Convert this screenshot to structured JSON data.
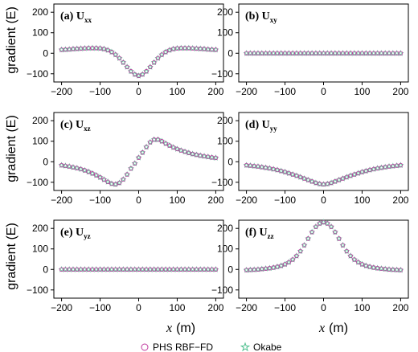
{
  "x_axis_label_var": "x",
  "x_axis_label_unit": "(m)",
  "y_axis_label": "gradient (E)",
  "legend": [
    {
      "label": "PHS RBF−FD",
      "marker": "circle",
      "color": "#c03aa0"
    },
    {
      "label": "Okabe",
      "marker": "star",
      "color": "#4fbf8f"
    }
  ],
  "chart_data": [
    {
      "type": "scatter",
      "panel_label": "(a)",
      "component": "U",
      "subscript": "xx",
      "xlim": [
        -220,
        220
      ],
      "ylim": [
        -140,
        240
      ],
      "xticks": [
        -200,
        -100,
        0,
        100,
        200
      ],
      "yticks": [
        -100,
        0,
        100,
        200
      ],
      "grid": false,
      "x": [
        -200,
        -190,
        -180,
        -170,
        -160,
        -150,
        -140,
        -130,
        -120,
        -110,
        -100,
        -90,
        -80,
        -70,
        -60,
        -50,
        -40,
        -30,
        -20,
        -10,
        0,
        10,
        20,
        30,
        40,
        50,
        60,
        70,
        80,
        90,
        100,
        110,
        120,
        130,
        140,
        150,
        160,
        170,
        180,
        190,
        200
      ],
      "series": [
        {
          "name": "PHS RBF−FD",
          "values": [
            17,
            18,
            19,
            21,
            22,
            23,
            24,
            25,
            25,
            25,
            24,
            21,
            15,
            6,
            -7,
            -24,
            -45,
            -67,
            -88,
            -103,
            -110,
            -103,
            -88,
            -67,
            -45,
            -24,
            -7,
            6,
            15,
            21,
            24,
            25,
            25,
            25,
            24,
            23,
            22,
            21,
            19,
            18,
            17
          ]
        },
        {
          "name": "Okabe",
          "values": [
            17,
            18,
            19,
            21,
            22,
            23,
            24,
            25,
            25,
            25,
            24,
            21,
            15,
            6,
            -7,
            -24,
            -45,
            -67,
            -88,
            -103,
            -110,
            -103,
            -88,
            -67,
            -45,
            -24,
            -7,
            6,
            15,
            21,
            24,
            25,
            25,
            25,
            24,
            23,
            22,
            21,
            19,
            18,
            17
          ]
        }
      ]
    },
    {
      "type": "scatter",
      "panel_label": "(b)",
      "component": "U",
      "subscript": "xy",
      "xlim": [
        -220,
        220
      ],
      "ylim": [
        -140,
        240
      ],
      "xticks": [
        -200,
        -100,
        0,
        100,
        200
      ],
      "yticks": [
        -100,
        0,
        100,
        200
      ],
      "grid": false,
      "x": [
        -200,
        -190,
        -180,
        -170,
        -160,
        -150,
        -140,
        -130,
        -120,
        -110,
        -100,
        -90,
        -80,
        -70,
        -60,
        -50,
        -40,
        -30,
        -20,
        -10,
        0,
        10,
        20,
        30,
        40,
        50,
        60,
        70,
        80,
        90,
        100,
        110,
        120,
        130,
        140,
        150,
        160,
        170,
        180,
        190,
        200
      ],
      "series": [
        {
          "name": "PHS RBF−FD",
          "values": [
            0,
            0,
            0,
            0,
            0,
            0,
            0,
            0,
            0,
            0,
            0,
            0,
            0,
            0,
            0,
            0,
            0,
            0,
            0,
            0,
            0,
            0,
            0,
            0,
            0,
            0,
            0,
            0,
            0,
            0,
            0,
            0,
            0,
            0,
            0,
            0,
            0,
            0,
            0,
            0,
            0
          ]
        },
        {
          "name": "Okabe",
          "values": [
            0,
            0,
            0,
            0,
            0,
            0,
            0,
            0,
            0,
            0,
            0,
            0,
            0,
            0,
            0,
            0,
            0,
            0,
            0,
            0,
            0,
            0,
            0,
            0,
            0,
            0,
            0,
            0,
            0,
            0,
            0,
            0,
            0,
            0,
            0,
            0,
            0,
            0,
            0,
            0,
            0
          ]
        }
      ]
    },
    {
      "type": "scatter",
      "panel_label": "(c)",
      "component": "U",
      "subscript": "xz",
      "xlim": [
        -220,
        220
      ],
      "ylim": [
        -140,
        240
      ],
      "xticks": [
        -200,
        -100,
        0,
        100,
        200
      ],
      "yticks": [
        -100,
        0,
        100,
        200
      ],
      "grid": false,
      "x": [
        -200,
        -190,
        -180,
        -170,
        -160,
        -150,
        -140,
        -130,
        -120,
        -110,
        -100,
        -90,
        -80,
        -70,
        -60,
        -50,
        -40,
        -30,
        -20,
        -10,
        0,
        10,
        20,
        30,
        40,
        50,
        60,
        70,
        80,
        90,
        100,
        110,
        120,
        130,
        140,
        150,
        160,
        170,
        180,
        190,
        200
      ],
      "series": [
        {
          "name": "PHS RBF−FD",
          "values": [
            -17,
            -20,
            -23,
            -27,
            -31,
            -36,
            -42,
            -49,
            -57,
            -66,
            -76,
            -87,
            -98,
            -107,
            -110,
            -103,
            -86,
            -62,
            -33,
            -8,
            20,
            45,
            72,
            95,
            108,
            108,
            100,
            89,
            79,
            70,
            62,
            55,
            49,
            43,
            38,
            34,
            30,
            27,
            24,
            21,
            19
          ]
        },
        {
          "name": "Okabe",
          "values": [
            -17,
            -20,
            -23,
            -27,
            -31,
            -36,
            -42,
            -49,
            -57,
            -66,
            -76,
            -87,
            -98,
            -107,
            -110,
            -103,
            -86,
            -62,
            -33,
            -8,
            20,
            45,
            72,
            95,
            108,
            108,
            100,
            89,
            79,
            70,
            62,
            55,
            49,
            43,
            38,
            34,
            30,
            27,
            24,
            21,
            19
          ]
        }
      ]
    },
    {
      "type": "scatter",
      "panel_label": "(d)",
      "component": "U",
      "subscript": "yy",
      "xlim": [
        -220,
        220
      ],
      "ylim": [
        -140,
        240
      ],
      "xticks": [
        -200,
        -100,
        0,
        100,
        200
      ],
      "yticks": [
        -100,
        0,
        100,
        200
      ],
      "grid": false,
      "x": [
        -200,
        -190,
        -180,
        -170,
        -160,
        -150,
        -140,
        -130,
        -120,
        -110,
        -100,
        -90,
        -80,
        -70,
        -60,
        -50,
        -40,
        -30,
        -20,
        -10,
        0,
        10,
        20,
        30,
        40,
        50,
        60,
        70,
        80,
        90,
        100,
        110,
        120,
        130,
        140,
        150,
        160,
        170,
        180,
        190,
        200
      ],
      "series": [
        {
          "name": "PHS RBF−FD",
          "values": [
            -17,
            -19,
            -21,
            -23,
            -26,
            -29,
            -32,
            -36,
            -40,
            -45,
            -50,
            -56,
            -62,
            -68,
            -75,
            -82,
            -89,
            -96,
            -103,
            -108,
            -110,
            -108,
            -103,
            -96,
            -89,
            -82,
            -75,
            -68,
            -62,
            -56,
            -50,
            -45,
            -40,
            -36,
            -32,
            -29,
            -26,
            -23,
            -21,
            -19,
            -17
          ]
        },
        {
          "name": "Okabe",
          "values": [
            -17,
            -19,
            -21,
            -23,
            -26,
            -29,
            -32,
            -36,
            -40,
            -45,
            -50,
            -56,
            -62,
            -68,
            -75,
            -82,
            -89,
            -96,
            -103,
            -108,
            -110,
            -108,
            -103,
            -96,
            -89,
            -82,
            -75,
            -68,
            -62,
            -56,
            -50,
            -45,
            -40,
            -36,
            -32,
            -29,
            -26,
            -23,
            -21,
            -19,
            -17
          ]
        }
      ]
    },
    {
      "type": "scatter",
      "panel_label": "(e)",
      "component": "U",
      "subscript": "yz",
      "xlim": [
        -220,
        220
      ],
      "ylim": [
        -140,
        240
      ],
      "xticks": [
        -200,
        -100,
        0,
        100,
        200
      ],
      "yticks": [
        -100,
        0,
        100,
        200
      ],
      "grid": false,
      "x": [
        -200,
        -190,
        -180,
        -170,
        -160,
        -150,
        -140,
        -130,
        -120,
        -110,
        -100,
        -90,
        -80,
        -70,
        -60,
        -50,
        -40,
        -30,
        -20,
        -10,
        0,
        10,
        20,
        30,
        40,
        50,
        60,
        70,
        80,
        90,
        100,
        110,
        120,
        130,
        140,
        150,
        160,
        170,
        180,
        190,
        200
      ],
      "series": [
        {
          "name": "PHS RBF−FD",
          "values": [
            0,
            0,
            0,
            0,
            0,
            0,
            0,
            0,
            0,
            0,
            0,
            0,
            0,
            0,
            0,
            0,
            0,
            0,
            0,
            0,
            0,
            0,
            0,
            0,
            0,
            0,
            0,
            0,
            0,
            0,
            0,
            0,
            0,
            0,
            0,
            0,
            0,
            0,
            0,
            0,
            0
          ]
        },
        {
          "name": "Okabe",
          "values": [
            0,
            0,
            0,
            0,
            0,
            0,
            0,
            0,
            0,
            0,
            0,
            0,
            0,
            0,
            0,
            0,
            0,
            0,
            0,
            0,
            0,
            0,
            0,
            0,
            0,
            0,
            0,
            0,
            0,
            0,
            0,
            0,
            0,
            0,
            0,
            0,
            0,
            0,
            0,
            0,
            0
          ]
        }
      ]
    },
    {
      "type": "scatter",
      "panel_label": "(f)",
      "component": "U",
      "subscript": "zz",
      "xlim": [
        -220,
        220
      ],
      "ylim": [
        -140,
        240
      ],
      "xticks": [
        -200,
        -100,
        0,
        100,
        200
      ],
      "yticks": [
        -100,
        0,
        100,
        200
      ],
      "grid": false,
      "x": [
        -200,
        -190,
        -180,
        -170,
        -160,
        -150,
        -140,
        -130,
        -120,
        -110,
        -100,
        -90,
        -80,
        -70,
        -60,
        -50,
        -40,
        -30,
        -20,
        -10,
        0,
        10,
        20,
        30,
        40,
        50,
        60,
        70,
        80,
        90,
        100,
        110,
        120,
        130,
        140,
        150,
        160,
        170,
        180,
        190,
        200
      ],
      "series": [
        {
          "name": "PHS RBF−FD",
          "values": [
            -3,
            -2,
            -1,
            0,
            2,
            4,
            6,
            9,
            13,
            18,
            25,
            35,
            48,
            66,
            89,
            118,
            150,
            182,
            208,
            224,
            230,
            224,
            208,
            182,
            150,
            118,
            89,
            66,
            48,
            35,
            25,
            18,
            13,
            9,
            6,
            4,
            2,
            0,
            -1,
            -2,
            -3
          ]
        },
        {
          "name": "Okabe",
          "values": [
            -3,
            -2,
            -1,
            0,
            2,
            4,
            6,
            9,
            13,
            18,
            25,
            35,
            48,
            66,
            89,
            118,
            150,
            182,
            208,
            224,
            230,
            224,
            208,
            182,
            150,
            118,
            89,
            66,
            48,
            35,
            25,
            18,
            13,
            9,
            6,
            4,
            2,
            0,
            -1,
            -2,
            -3
          ]
        }
      ]
    }
  ]
}
